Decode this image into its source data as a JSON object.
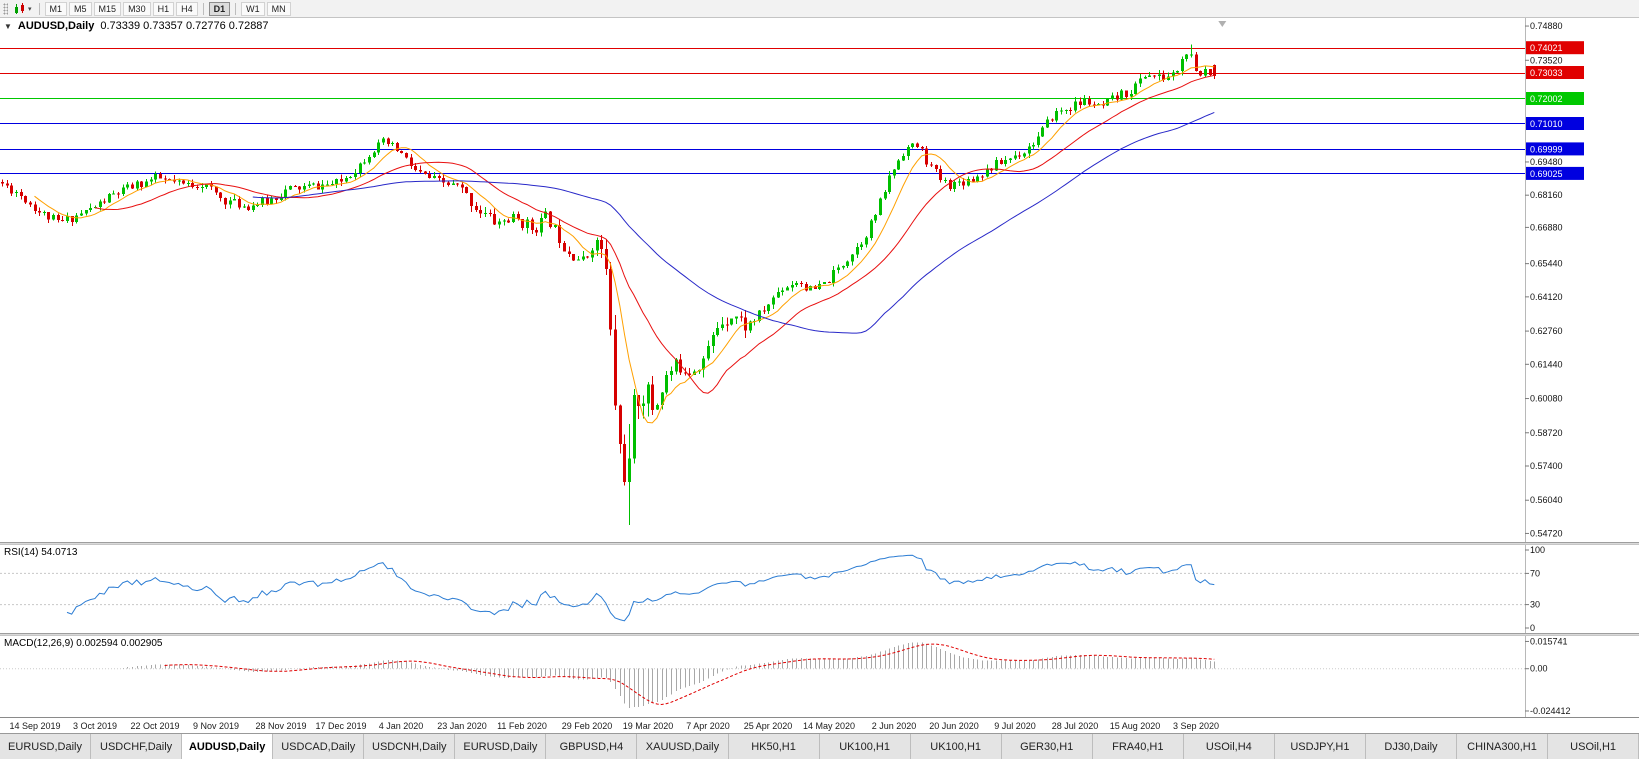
{
  "toolbar": {
    "timeframes": [
      "M1",
      "M5",
      "M15",
      "M30",
      "H1",
      "H4",
      "D1",
      "W1",
      "MN"
    ],
    "active_timeframe": "D1"
  },
  "chart": {
    "collapse_icon": "▼",
    "symbol": "AUDUSD,Daily",
    "ohlc": "0.73339 0.73357 0.72776 0.72887"
  },
  "chart_data": {
    "type": "candlestick",
    "title": "AUDUSD,Daily",
    "x_labels": [
      "14 Sep 2019",
      "3 Oct 2019",
      "22 Oct 2019",
      "9 Nov 2019",
      "28 Nov 2019",
      "17 Dec 2019",
      "4 Jan 2020",
      "23 Jan 2020",
      "11 Feb 2020",
      "29 Feb 2020",
      "19 Mar 2020",
      "7 Apr 2020",
      "25 Apr 2020",
      "14 May 2020",
      "2 Jun 2020",
      "20 Jun 2020",
      "9 Jul 2020",
      "28 Jul 2020",
      "15 Aug 2020",
      "3 Sep 2020"
    ],
    "x_label_indices": [
      7,
      20,
      33,
      46,
      60,
      73,
      86,
      99,
      112,
      126,
      139,
      152,
      165,
      178,
      192,
      205,
      218,
      231,
      244,
      257
    ],
    "y_ticks": [
      "0.74880",
      "0.73520",
      "0.69480",
      "0.68160",
      "0.66880",
      "0.65440",
      "0.64120",
      "0.62760",
      "0.61440",
      "0.60080",
      "0.58720",
      "0.57400",
      "0.56040",
      "0.54720"
    ],
    "price_max": 0.752,
    "price_min": 0.5438,
    "hlines": [
      {
        "price": 0.74021,
        "color": "#e00000"
      },
      {
        "price": 0.73033,
        "color": "#e00000"
      },
      {
        "price": 0.72002,
        "color": "#00c800"
      },
      {
        "price": 0.7101,
        "color": "#0000e0"
      },
      {
        "price": 0.69999,
        "color": "#0000e0"
      },
      {
        "price": 0.69025,
        "color": "#0000e0"
      }
    ],
    "colors": {
      "up": "#00bf00",
      "down": "#d60000",
      "ma_fast": "#ffa000",
      "ma_mid": "#e81010",
      "ma_slow": "#2828c8",
      "rsi": "#2b7cd3",
      "macd_hist": "#a8a8a8",
      "macd_signal": "#e00000"
    },
    "mas": [
      {
        "period": 8,
        "color_key": "ma_fast"
      },
      {
        "period": 21,
        "color_key": "ma_mid"
      },
      {
        "period": 55,
        "color_key": "ma_slow"
      }
    ],
    "gen": {
      "seed": 11,
      "num_candles": 262,
      "last_x_fraction": 0.798,
      "base_vol": 0.0023,
      "vol_windows": [
        {
          "from": 99,
          "to": 128,
          "mult": 1.35
        },
        {
          "from": 129,
          "to": 142,
          "mult": 3.2
        },
        {
          "from": 143,
          "to": 161,
          "mult": 1.7
        }
      ],
      "anchors": [
        [
          0,
          0.6868
        ],
        [
          4,
          0.6826
        ],
        [
          9,
          0.6745
        ],
        [
          13,
          0.6705
        ],
        [
          16,
          0.673
        ],
        [
          20,
          0.6762
        ],
        [
          24,
          0.6812
        ],
        [
          29,
          0.6852
        ],
        [
          34,
          0.6884
        ],
        [
          39,
          0.6856
        ],
        [
          44,
          0.6862
        ],
        [
          48,
          0.68
        ],
        [
          53,
          0.6772
        ],
        [
          58,
          0.6792
        ],
        [
          62,
          0.6838
        ],
        [
          68,
          0.6852
        ],
        [
          73,
          0.6862
        ],
        [
          77,
          0.6925
        ],
        [
          80,
          0.6992
        ],
        [
          83,
          0.7025
        ],
        [
          86,
          0.6992
        ],
        [
          90,
          0.6905
        ],
        [
          94,
          0.6872
        ],
        [
          99,
          0.6848
        ],
        [
          103,
          0.6762
        ],
        [
          107,
          0.6706
        ],
        [
          110,
          0.6722
        ],
        [
          112,
          0.6716
        ],
        [
          115,
          0.6682
        ],
        [
          118,
          0.6732
        ],
        [
          122,
          0.6606
        ],
        [
          126,
          0.6548
        ],
        [
          128,
          0.6636
        ],
        [
          130,
          0.66
        ],
        [
          131,
          0.6452
        ],
        [
          132,
          0.6152
        ],
        [
          133,
          0.5902
        ],
        [
          134,
          0.5762
        ],
        [
          135,
          0.5702
        ],
        [
          136,
          0.5892
        ],
        [
          137,
          0.6002
        ],
        [
          139,
          0.6042
        ],
        [
          141,
          0.5962
        ],
        [
          143,
          0.6082
        ],
        [
          146,
          0.6142
        ],
        [
          149,
          0.6122
        ],
        [
          152,
          0.6172
        ],
        [
          155,
          0.6312
        ],
        [
          158,
          0.6346
        ],
        [
          161,
          0.6292
        ],
        [
          165,
          0.6366
        ],
        [
          168,
          0.6442
        ],
        [
          172,
          0.6478
        ],
        [
          175,
          0.6432
        ],
        [
          178,
          0.6466
        ],
        [
          182,
          0.6552
        ],
        [
          186,
          0.6642
        ],
        [
          189,
          0.6752
        ],
        [
          192,
          0.6902
        ],
        [
          195,
          0.7002
        ],
        [
          198,
          0.7012
        ],
        [
          200,
          0.6942
        ],
        [
          203,
          0.6872
        ],
        [
          205,
          0.6858
        ],
        [
          210,
          0.6886
        ],
        [
          214,
          0.6932
        ],
        [
          218,
          0.6968
        ],
        [
          221,
          0.6996
        ],
        [
          224,
          0.7052
        ],
        [
          227,
          0.7138
        ],
        [
          231,
          0.7168
        ],
        [
          234,
          0.7192
        ],
        [
          237,
          0.7158
        ],
        [
          240,
          0.7198
        ],
        [
          244,
          0.7236
        ],
        [
          247,
          0.7302
        ],
        [
          250,
          0.7278
        ],
        [
          253,
          0.7296
        ],
        [
          256,
          0.7392
        ],
        [
          257,
          0.7342
        ],
        [
          258,
          0.7268
        ],
        [
          259,
          0.7302
        ],
        [
          260,
          0.7326
        ],
        [
          261,
          0.7295
        ]
      ],
      "forced": {
        "135": {
          "l": 0.5506,
          "c": 0.577
        },
        "256": {
          "h": 0.7414
        },
        "261": {
          "o": 0.73339,
          "h": 0.73357,
          "l": 0.72776,
          "c": 0.72887
        }
      }
    },
    "rsi": {
      "label": "RSI(14) 54.0713",
      "period": 14,
      "y_tick_values": [
        100,
        70,
        30,
        0
      ],
      "dashed_levels": [
        70,
        30
      ]
    },
    "macd": {
      "label": "MACD(12,26,9) 0.002594 0.002905",
      "fast": 12,
      "slow": 26,
      "signal_period": 9,
      "scale_max": 0.016,
      "scale_min": -0.025,
      "y_ticks": [
        {
          "v": 0.015741,
          "t": "0.015741"
        },
        {
          "v": 0,
          "t": "0.00"
        },
        {
          "v": -0.024412,
          "t": "-0.024412"
        }
      ]
    }
  },
  "tabs": [
    "EURUSD,Daily",
    "USDCHF,Daily",
    "AUDUSD,Daily",
    "USDCAD,Daily",
    "USDCNH,Daily",
    "EURUSD,Daily",
    "GBPUSD,H4",
    "XAUUSD,Daily",
    "HK50,H1",
    "UK100,H1",
    "UK100,H1",
    "GER30,H1",
    "FRA40,H1",
    "USOil,H4",
    "USDJPY,H1",
    "DJ30,Daily",
    "CHINA300,H1",
    "USOil,H1"
  ],
  "active_tab_index": 2
}
